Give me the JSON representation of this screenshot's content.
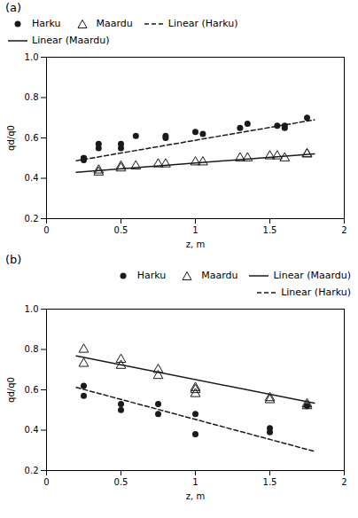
{
  "chart_data": [
    {
      "type": "scatter",
      "title": "(a)",
      "xlabel": "z, m",
      "ylabel": "qd/q0",
      "xlim": [
        0,
        2
      ],
      "ylim": [
        0.2,
        1.0
      ],
      "xticks": [
        0,
        0.5,
        1,
        1.5,
        2
      ],
      "yticks": [
        0.2,
        0.4,
        0.6,
        0.8,
        {
          "value": 1.0,
          "label": "1.0"
        }
      ],
      "grid": false,
      "legend": "upper left",
      "series": [
        {
          "name": "Harku",
          "type": "scatter",
          "marker": "circle",
          "color": "#1a1a1a",
          "x": [
            0.25,
            0.25,
            0.25,
            0.35,
            0.35,
            0.5,
            0.5,
            0.6,
            0.8,
            0.8,
            1.0,
            1.05,
            1.3,
            1.35,
            1.55,
            1.6,
            1.6,
            1.75
          ],
          "values": [
            0.49,
            0.5,
            0.5,
            0.57,
            0.55,
            0.57,
            0.55,
            0.61,
            0.6,
            0.61,
            0.63,
            0.62,
            0.65,
            0.67,
            0.66,
            0.65,
            0.66,
            0.7
          ]
        },
        {
          "name": "Maardu",
          "type": "scatter",
          "marker": "triangle_open",
          "color": "#1a1a1a",
          "x": [
            0.35,
            0.35,
            0.5,
            0.5,
            0.6,
            0.75,
            0.8,
            1.0,
            1.05,
            1.3,
            1.35,
            1.5,
            1.55,
            1.6,
            1.75,
            1.75
          ],
          "values": [
            0.44,
            0.43,
            0.45,
            0.46,
            0.46,
            0.47,
            0.47,
            0.48,
            0.48,
            0.5,
            0.5,
            0.51,
            0.51,
            0.5,
            0.52,
            0.52
          ]
        },
        {
          "name": "Linear (Harku)",
          "type": "line",
          "line_style": "dashed",
          "color": "#1a1a1a",
          "x": [
            0.2,
            1.8
          ],
          "values": [
            0.487,
            0.69
          ]
        },
        {
          "name": "Linear (Maardu)",
          "type": "line",
          "line_style": "solid",
          "color": "#1a1a1a",
          "x": [
            0.2,
            1.8
          ],
          "values": [
            0.43,
            0.521
          ]
        }
      ]
    },
    {
      "type": "scatter",
      "title": "(b)",
      "xlabel": "z, m",
      "ylabel": "qd/q0",
      "xlim": [
        0,
        2
      ],
      "ylim": [
        0.2,
        1.0
      ],
      "xticks": [
        0,
        0.5,
        1,
        1.5,
        2
      ],
      "yticks": [
        0.2,
        0.4,
        0.6,
        0.8,
        {
          "value": 1.0,
          "label": "1.0"
        }
      ],
      "grid": false,
      "legend": "upper right",
      "series": [
        {
          "name": "Harku",
          "type": "scatter",
          "marker": "circle",
          "color": "#1a1a1a",
          "x": [
            0.25,
            0.25,
            0.5,
            0.5,
            0.75,
            0.75,
            1.0,
            1.0,
            1.5,
            1.5,
            1.75
          ],
          "values": [
            0.62,
            0.57,
            0.53,
            0.5,
            0.53,
            0.48,
            0.48,
            0.38,
            0.41,
            0.39,
            0.52
          ]
        },
        {
          "name": "Maardu",
          "type": "scatter",
          "marker": "triangle_open",
          "color": "#1a1a1a",
          "x": [
            0.25,
            0.25,
            0.5,
            0.5,
            0.75,
            0.75,
            1.0,
            1.0,
            1.0,
            1.5,
            1.5,
            1.75,
            1.75
          ],
          "values": [
            0.8,
            0.73,
            0.75,
            0.72,
            0.7,
            0.67,
            0.61,
            0.6,
            0.58,
            0.56,
            0.55,
            0.53,
            0.52
          ]
        },
        {
          "name": "Linear (Maardu)",
          "type": "line",
          "line_style": "solid",
          "color": "#1a1a1a",
          "x": [
            0.2,
            1.8
          ],
          "values": [
            0.768,
            0.534
          ]
        },
        {
          "name": "Linear (Harku)",
          "type": "line",
          "line_style": "dashed",
          "color": "#1a1a1a",
          "x": [
            0.2,
            1.8
          ],
          "values": [
            0.612,
            0.295
          ]
        }
      ]
    }
  ]
}
